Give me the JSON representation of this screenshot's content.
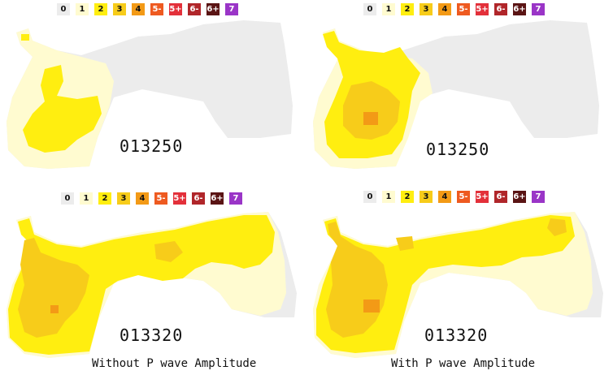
{
  "legend": {
    "items": [
      {
        "label": "0",
        "bg": "#ececec",
        "fg": "#111111"
      },
      {
        "label": "1",
        "bg": "#fffbd0",
        "fg": "#111111"
      },
      {
        "label": "2",
        "bg": "#ffee10",
        "fg": "#111111"
      },
      {
        "label": "3",
        "bg": "#f7cc1a",
        "fg": "#111111"
      },
      {
        "label": "4",
        "bg": "#f39a16",
        "fg": "#111111"
      },
      {
        "label": "5-",
        "bg": "#ee5a20",
        "fg": "#ffffff"
      },
      {
        "label": "5+",
        "bg": "#e3303a",
        "fg": "#ffffff"
      },
      {
        "label": "6-",
        "bg": "#b0262a",
        "fg": "#ffffff"
      },
      {
        "label": "6+",
        "bg": "#5a1414",
        "fg": "#ffffff"
      },
      {
        "label": "7",
        "bg": "#9a35c7",
        "fg": "#ffffff"
      }
    ]
  },
  "panels": [
    {
      "time": "013250"
    },
    {
      "time": "013250"
    },
    {
      "time": "013320"
    },
    {
      "time": "013320"
    }
  ],
  "captions": {
    "left": "Without P wave Amplitude",
    "right": "With P wave Amplitude"
  }
}
